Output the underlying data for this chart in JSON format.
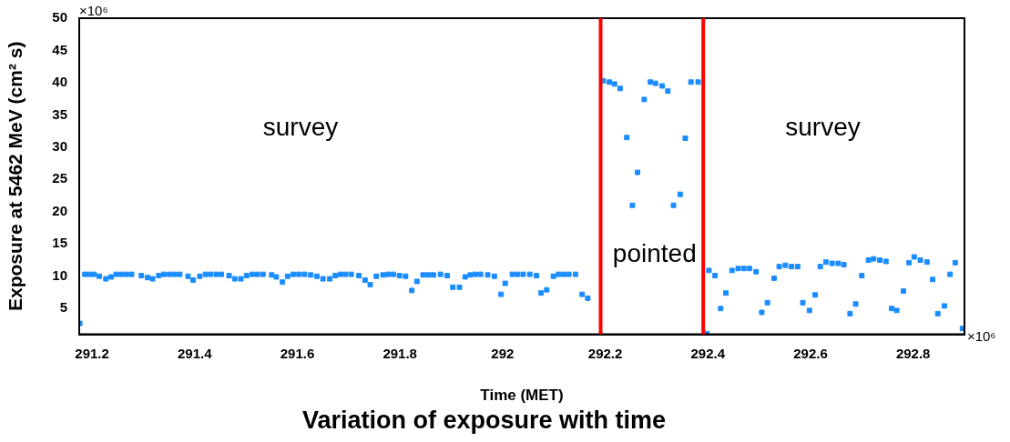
{
  "chart_data": {
    "type": "scatter",
    "title": "Variation of exposure with time",
    "xlabel": "Time (MET)",
    "ylabel": "Exposure at 5462 MeV (cm² s)",
    "xlim": [
      291.175,
      292.9
    ],
    "xticks": [
      291.2,
      291.4,
      291.6,
      291.8,
      292,
      292.2,
      292.4,
      292.6,
      292.8
    ],
    "ylim": [
      1,
      50
    ],
    "yticks": [
      5,
      10,
      15,
      20,
      25,
      30,
      35,
      40,
      45,
      50
    ],
    "grid": false,
    "legend": false,
    "marker": "square",
    "series": [
      {
        "color": "#1a8cff",
        "x": [
          291.176,
          291.186,
          291.195,
          291.204,
          291.214,
          291.227,
          291.237,
          291.247,
          291.257,
          291.267,
          291.277,
          291.296,
          291.308,
          291.318,
          291.33,
          291.34,
          291.351,
          291.361,
          291.371,
          291.387,
          291.397,
          291.41,
          291.421,
          291.431,
          291.442,
          291.452,
          291.467,
          291.478,
          291.49,
          291.501,
          291.512,
          291.522,
          291.533,
          291.55,
          291.559,
          291.571,
          291.581,
          291.592,
          291.603,
          291.614,
          291.626,
          291.638,
          291.65,
          291.663,
          291.674,
          291.684,
          291.694,
          291.705,
          291.72,
          291.732,
          291.742,
          291.754,
          291.767,
          291.777,
          291.787,
          291.799,
          291.811,
          291.823,
          291.833,
          291.845,
          291.855,
          291.865,
          291.879,
          291.892,
          291.903,
          291.916,
          291.927,
          291.937,
          291.947,
          291.957,
          291.971,
          291.984,
          291.997,
          292.005,
          292.019,
          292.029,
          292.04,
          292.053,
          292.066,
          292.075,
          292.086,
          292.099,
          292.109,
          292.119,
          292.129,
          292.142,
          292.155,
          292.166,
          292.196,
          292.208,
          292.218,
          292.229,
          292.242,
          292.253,
          292.263,
          292.276,
          292.288,
          292.298,
          292.311,
          292.322,
          292.333,
          292.346,
          292.356,
          292.367,
          292.381,
          292.398,
          292.402,
          292.414,
          292.425,
          292.435,
          292.447,
          292.459,
          292.47,
          292.481,
          292.494,
          292.505,
          292.516,
          292.529,
          292.539,
          292.551,
          292.563,
          292.575,
          292.585,
          292.598,
          292.609,
          292.619,
          292.63,
          292.642,
          292.654,
          292.665,
          292.677,
          292.688,
          292.7,
          292.713,
          292.723,
          292.735,
          292.747,
          292.758,
          292.768,
          292.781,
          292.792,
          292.802,
          292.814,
          292.827,
          292.838,
          292.848,
          292.861,
          292.872,
          292.882,
          292.896
        ],
        "values": [
          2.7,
          10.3,
          10.3,
          10.3,
          10.0,
          9.6,
          9.9,
          10.3,
          10.3,
          10.3,
          10.3,
          10.1,
          9.8,
          9.6,
          10.1,
          10.3,
          10.3,
          10.3,
          10.3,
          10.0,
          9.4,
          10.0,
          10.3,
          10.3,
          10.3,
          10.3,
          10.1,
          9.6,
          9.6,
          10.1,
          10.3,
          10.3,
          10.3,
          10.2,
          9.9,
          9.1,
          10.0,
          10.3,
          10.3,
          10.3,
          10.2,
          10.0,
          9.6,
          9.6,
          10.1,
          10.3,
          10.3,
          10.3,
          10.1,
          9.4,
          8.7,
          10.0,
          10.2,
          10.3,
          10.3,
          10.1,
          10.0,
          7.8,
          9.2,
          10.2,
          10.2,
          10.2,
          10.3,
          10.1,
          8.3,
          8.3,
          9.9,
          10.2,
          10.3,
          10.3,
          10.2,
          10.0,
          7.2,
          8.9,
          10.3,
          10.3,
          10.3,
          10.3,
          10.1,
          7.4,
          7.9,
          10.0,
          10.3,
          10.3,
          10.3,
          10.3,
          7.2,
          6.6,
          40.3,
          40.1,
          39.8,
          39.1,
          31.5,
          21.0,
          26.1,
          37.4,
          40.1,
          39.9,
          39.5,
          38.7,
          21.0,
          22.7,
          31.4,
          40.1,
          40.1,
          1.1,
          10.9,
          10.1,
          5.0,
          7.4,
          10.9,
          11.2,
          11.2,
          11.2,
          10.7,
          4.4,
          5.9,
          9.7,
          11.5,
          11.7,
          11.5,
          11.5,
          5.9,
          4.7,
          7.1,
          11.5,
          12.2,
          12.0,
          12.0,
          11.8,
          4.2,
          5.7,
          10.1,
          12.5,
          12.7,
          12.5,
          12.3,
          5.0,
          4.7,
          7.7,
          12.1,
          13.0,
          12.5,
          12.2,
          9.5,
          4.2,
          5.4,
          10.3,
          12.1,
          1.9
        ]
      }
    ],
    "ref_lines": [
      {
        "axis": "x",
        "value": 292.191,
        "color": "#ff0000"
      },
      {
        "axis": "x",
        "value": 292.391,
        "color": "#ff0000"
      }
    ],
    "annotations": [
      "survey",
      "pointed",
      "survey",
      "×10⁶",
      "×10⁶"
    ]
  }
}
